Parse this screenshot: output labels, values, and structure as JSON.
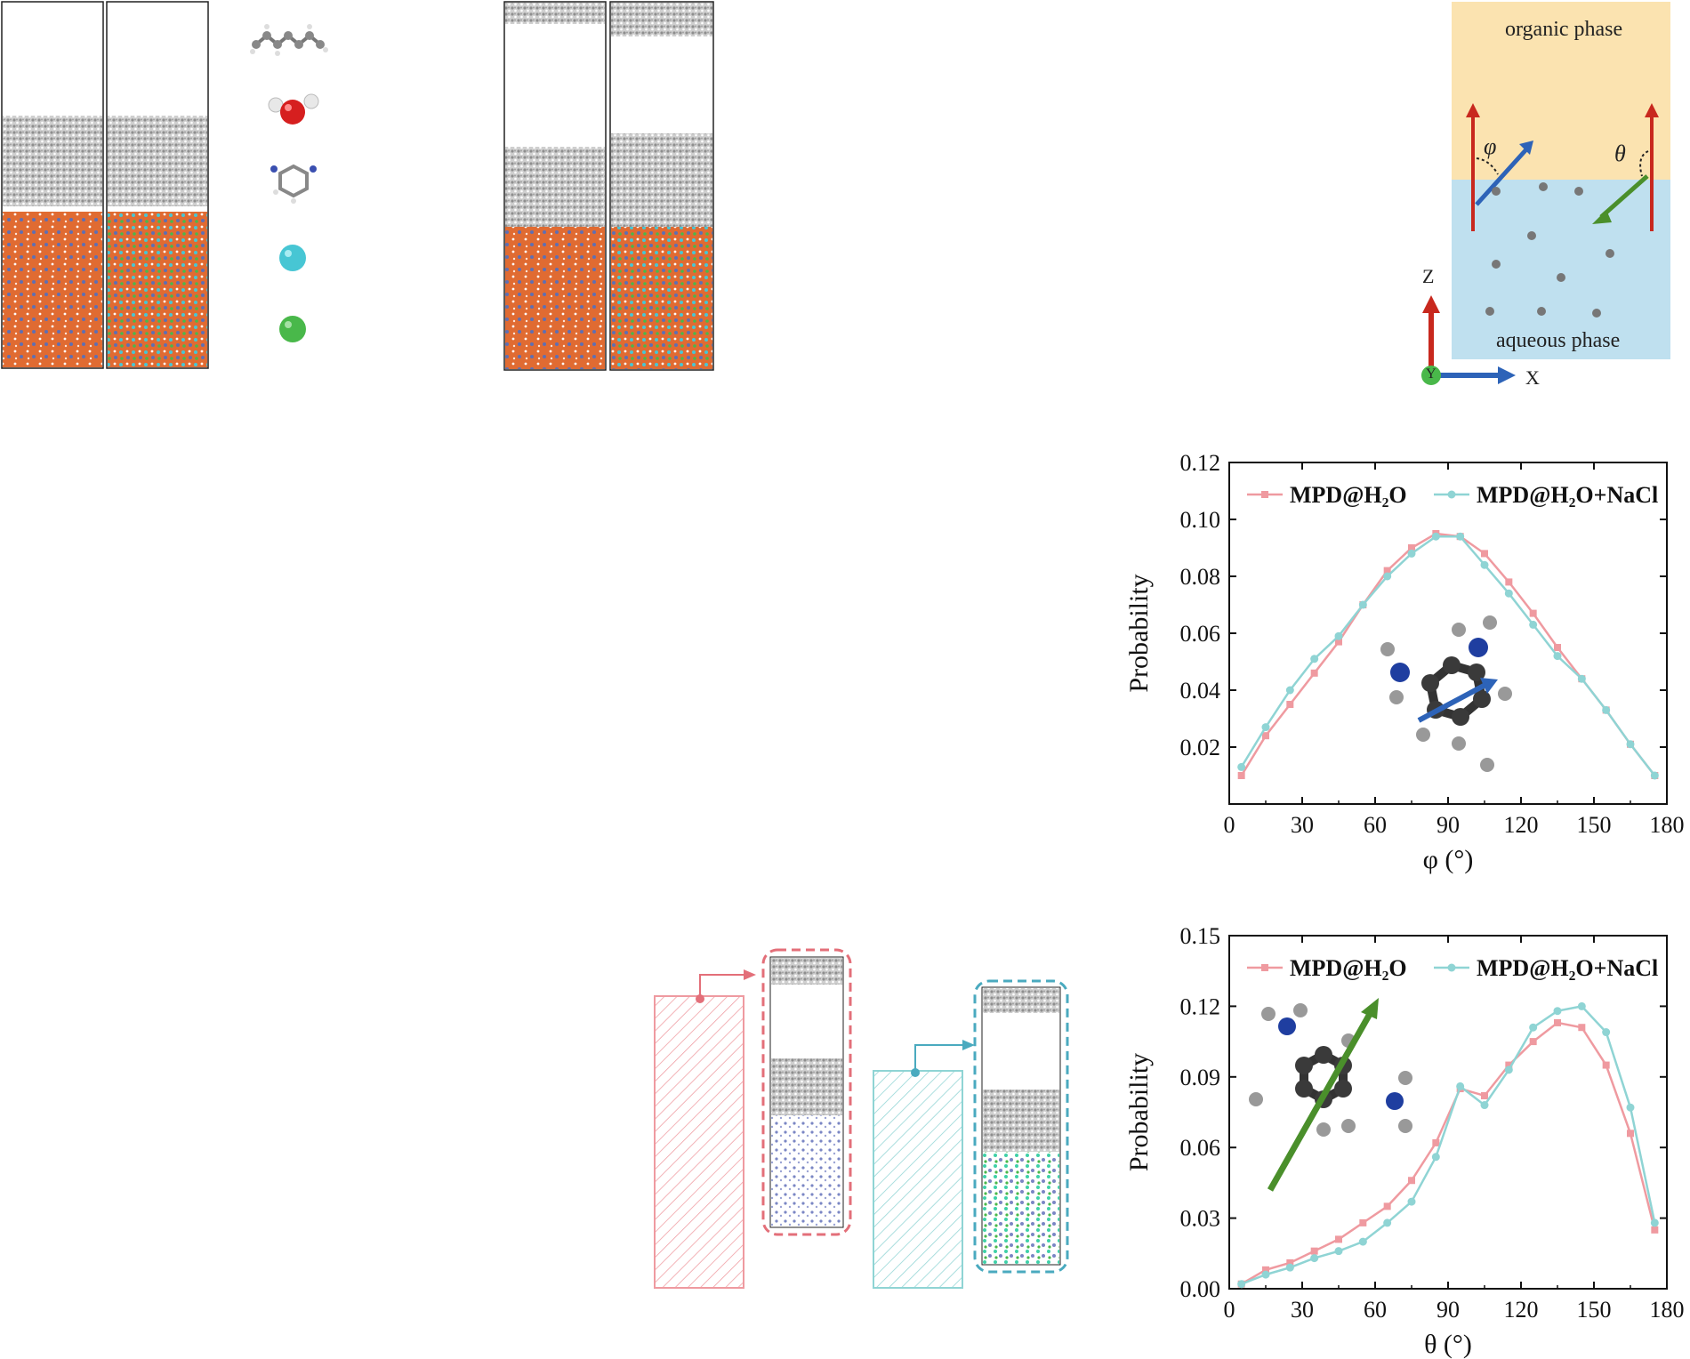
{
  "schematic": {
    "organic_label": "organic phase",
    "aqueous_label": "aqueous phase",
    "phi_symbol": "φ",
    "theta_symbol": "θ",
    "axis_z": "Z",
    "axis_x": "X",
    "axis_y": "Y",
    "organic_color": "#fbe3b0",
    "aqueous_color": "#bfe0ef"
  },
  "colors": {
    "series_h2o": "#ef9aa0",
    "series_nacl": "#8fd4d4",
    "hexane": "#a9a9a9",
    "water": "#d95f2b",
    "mpd": "#5e6fb3",
    "na": "#47c6d4",
    "cl": "#49b84a",
    "arrow_red": "#c8281e",
    "arrow_blue": "#2d63b8",
    "arrow_green": "#4a8f2b"
  },
  "legend_icons": [
    "hexane-molecule",
    "water-molecule",
    "mpd-molecule",
    "sodium-ion",
    "chloride-ion"
  ],
  "chart_data": [
    {
      "type": "line",
      "xlabel": "φ (°)",
      "ylabel": "Probability",
      "xlim": [
        0,
        180
      ],
      "ylim": [
        0.0,
        0.12
      ],
      "xticks": [
        0,
        30,
        60,
        90,
        120,
        150,
        180
      ],
      "yticks": [
        0.02,
        0.04,
        0.06,
        0.08,
        0.1,
        0.12
      ],
      "ytick_labels": [
        "0.02",
        "0.04",
        "0.06",
        "0.08",
        "0.10",
        "0.12"
      ],
      "legend_position": "top",
      "x": [
        5,
        15,
        25,
        35,
        45,
        55,
        65,
        75,
        85,
        95,
        105,
        115,
        125,
        135,
        145,
        155,
        165,
        175
      ],
      "series": [
        {
          "name": "MPD@H₂O",
          "values": [
            0.01,
            0.024,
            0.035,
            0.046,
            0.057,
            0.07,
            0.082,
            0.09,
            0.095,
            0.094,
            0.088,
            0.078,
            0.067,
            0.055,
            0.044,
            0.033,
            0.021,
            0.01
          ]
        },
        {
          "name": "MPD@H₂O+NaCl",
          "values": [
            0.013,
            0.027,
            0.04,
            0.051,
            0.059,
            0.07,
            0.08,
            0.088,
            0.094,
            0.094,
            0.084,
            0.074,
            0.063,
            0.052,
            0.044,
            0.033,
            0.021,
            0.01
          ]
        }
      ]
    },
    {
      "type": "line",
      "xlabel": "θ (°)",
      "ylabel": "Probability",
      "xlim": [
        0,
        180
      ],
      "ylim": [
        0.0,
        0.15
      ],
      "xticks": [
        0,
        30,
        60,
        90,
        120,
        150,
        180
      ],
      "yticks": [
        0.0,
        0.03,
        0.06,
        0.09,
        0.12,
        0.15
      ],
      "ytick_labels": [
        "0.00",
        "0.03",
        "0.06",
        "0.09",
        "0.12",
        "0.15"
      ],
      "legend_position": "top",
      "x": [
        5,
        15,
        25,
        35,
        45,
        55,
        65,
        75,
        85,
        95,
        105,
        115,
        125,
        135,
        145,
        155,
        165,
        175
      ],
      "series": [
        {
          "name": "MPD@H₂O",
          "values": [
            0.002,
            0.008,
            0.011,
            0.016,
            0.021,
            0.028,
            0.035,
            0.046,
            0.062,
            0.085,
            0.082,
            0.095,
            0.105,
            0.113,
            0.111,
            0.095,
            0.066,
            0.025
          ]
        },
        {
          "name": "MPD@H₂O+NaCl",
          "values": [
            0.002,
            0.006,
            0.009,
            0.013,
            0.016,
            0.02,
            0.028,
            0.037,
            0.056,
            0.086,
            0.078,
            0.093,
            0.111,
            0.118,
            0.12,
            0.109,
            0.077,
            0.028
          ]
        }
      ]
    }
  ],
  "comparison_bars": {
    "values_percent": [
      100,
      85
    ],
    "series_refs": [
      "MPD@H₂O",
      "MPD@H₂O+NaCl"
    ]
  }
}
